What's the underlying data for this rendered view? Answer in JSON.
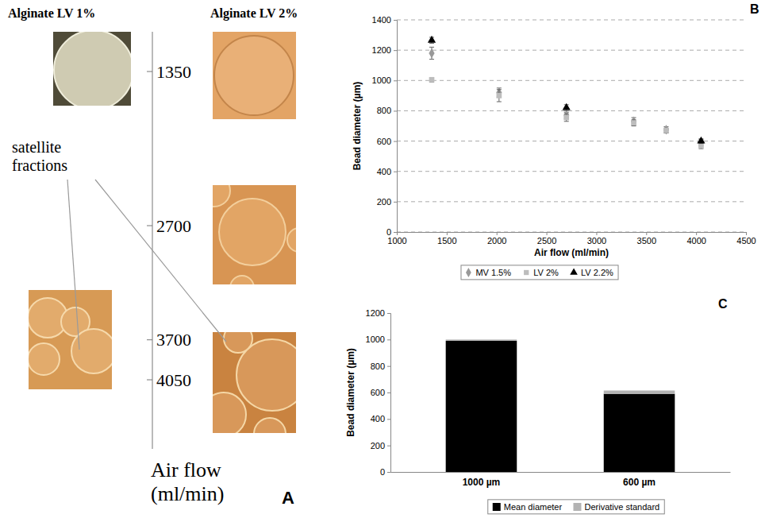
{
  "panel_a": {
    "letter": "A",
    "columns": [
      "Alginate LV 1%",
      "Alginate LV 2%"
    ],
    "ticks": [
      1350,
      2700,
      3700,
      4050
    ],
    "axis_title": "Air flow (ml/min)",
    "annotation": "satellite fractions"
  },
  "chart_data": [
    {
      "letter": "B",
      "type": "scatter",
      "x_label": "Air flow (ml/min)",
      "y_label": "Bead diameter (µm)",
      "xlim": [
        1000,
        4500
      ],
      "xticks": [
        1000,
        1500,
        2000,
        2500,
        3000,
        3500,
        4000,
        4500
      ],
      "ylim": [
        0,
        1400
      ],
      "yticks": [
        0,
        200,
        400,
        600,
        800,
        1000,
        1200,
        1400
      ],
      "grid": true,
      "legend": "bottom",
      "series": [
        {
          "name": "MV 1.5%",
          "color": "#999999",
          "marker": "diamond",
          "x": [
            1350,
            2025,
            2700,
            3375,
            3700,
            4050
          ],
          "values": [
            1180,
            920,
            770,
            730,
            675,
            590
          ],
          "errors": [
            40,
            30,
            20,
            25,
            20,
            20
          ]
        },
        {
          "name": "LV 2%",
          "color": "#bdbdbd",
          "marker": "square",
          "x": [
            1350,
            2025,
            2700,
            3375,
            3700,
            4050
          ],
          "values": [
            1005,
            900,
            755,
            720,
            670,
            570
          ],
          "errors": [
            15,
            40,
            25,
            20,
            15,
            20
          ]
        },
        {
          "name": "LV 2.2%",
          "color": "#000000",
          "marker": "triangle",
          "x": [
            1350,
            2700,
            4050
          ],
          "values": [
            1265,
            820,
            600
          ],
          "errors": [
            20,
            20,
            15
          ]
        }
      ]
    },
    {
      "letter": "C",
      "type": "bar",
      "stacked": true,
      "y_label": "Bead diameter (µm)",
      "categories": [
        "1000 µm",
        "600 µm"
      ],
      "ylim": [
        0,
        1200
      ],
      "yticks": [
        0,
        200,
        400,
        600,
        800,
        1000,
        1200
      ],
      "grid": false,
      "legend": "bottom",
      "series": [
        {
          "name": "Mean diameter",
          "color": "#000000",
          "values": [
            990,
            590
          ]
        },
        {
          "name": "Derivative standard",
          "color": "#b3b3b3",
          "values": [
            10,
            25
          ]
        }
      ]
    }
  ]
}
